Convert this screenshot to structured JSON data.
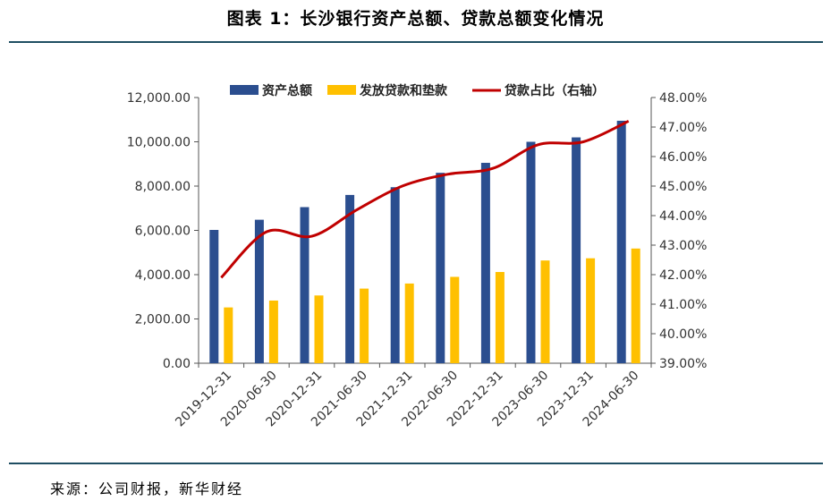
{
  "title": "图表 1：长沙银行资产总额、贷款总额变化情况",
  "source": "来源：公司财报，新华财经",
  "chart_data": {
    "type": "bar",
    "categories": [
      "2019-12-31",
      "2020-06-30",
      "2020-12-31",
      "2021-06-30",
      "2021-12-31",
      "2022-06-30",
      "2022-12-31",
      "2023-06-30",
      "2023-12-31",
      "2024-06-30"
    ],
    "series": [
      {
        "name": "资产总额",
        "type": "bar",
        "axis": "left",
        "color": "#2b4e8f",
        "values": [
          6020,
          6480,
          7050,
          7600,
          7950,
          8600,
          9050,
          10000,
          10200,
          10950
        ]
      },
      {
        "name": "发放贷款和垫款",
        "type": "bar",
        "axis": "left",
        "color": "#ffc000",
        "values": [
          2520,
          2830,
          3060,
          3370,
          3600,
          3900,
          4120,
          4640,
          4740,
          5180
        ]
      },
      {
        "name": "贷款占比（右轴）",
        "type": "line",
        "axis": "right",
        "color": "#c00000",
        "values": [
          0.419,
          0.4345,
          0.433,
          0.442,
          0.45,
          0.454,
          0.456,
          0.464,
          0.465,
          0.472
        ]
      }
    ],
    "y_left": {
      "min": 0,
      "max": 12000,
      "step": 2000,
      "tick_labels": [
        "0.00",
        "2,000.00",
        "4,000.00",
        "6,000.00",
        "8,000.00",
        "10,000.00",
        "12,000.00"
      ]
    },
    "y_right": {
      "min": 0.39,
      "max": 0.48,
      "step": 0.01,
      "tick_labels": [
        "39.00%",
        "40.00%",
        "41.00%",
        "42.00%",
        "43.00%",
        "44.00%",
        "45.00%",
        "46.00%",
        "47.00%",
        "48.00%"
      ]
    },
    "legend_position": "top",
    "grid": false
  }
}
